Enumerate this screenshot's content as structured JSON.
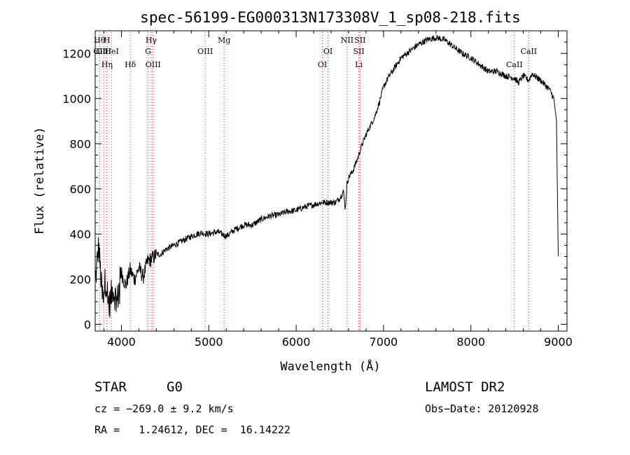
{
  "chart_data": {
    "type": "line",
    "title": "spec-56199-EG000313N173308V_1_sp08-218.fits",
    "xlabel": "Wavelength (Å)",
    "ylabel": "Flux (relative)",
    "xlim": [
      3700,
      9100
    ],
    "ylim": [
      -30,
      1300
    ],
    "x_ticks": [
      4000,
      5000,
      6000,
      7000,
      8000,
      9000
    ],
    "y_ticks": [
      0,
      200,
      400,
      600,
      800,
      1000,
      1200
    ],
    "grid": false,
    "series": [
      {
        "x": [
          3700,
          3740,
          3780,
          3820,
          3860,
          3900,
          3950,
          4000,
          4050,
          4100,
          4150,
          4200,
          4250,
          4300,
          4350,
          4400,
          4450,
          4500,
          4600,
          4700,
          4800,
          4900,
          5000,
          5100,
          5200,
          5300,
          5400,
          5500,
          5600,
          5700,
          5800,
          5900,
          6000,
          6100,
          6200,
          6300,
          6400,
          6450,
          6500,
          6540,
          6563,
          6580,
          6600,
          6650,
          6700,
          6750,
          6800,
          6850,
          6900,
          6950,
          7000,
          7050,
          7100,
          7150,
          7200,
          7300,
          7400,
          7500,
          7600,
          7700,
          7800,
          7900,
          8000,
          8100,
          8200,
          8300,
          8400,
          8500,
          8542,
          8600,
          8662,
          8700,
          8800,
          8850,
          8900,
          8950,
          8980,
          9000
        ],
        "y": [
          180,
          350,
          120,
          200,
          80,
          160,
          100,
          230,
          170,
          240,
          200,
          250,
          210,
          280,
          290,
          310,
          310,
          330,
          350,
          370,
          390,
          405,
          400,
          410,
          390,
          420,
          440,
          440,
          465,
          480,
          485,
          500,
          505,
          520,
          530,
          540,
          540,
          540,
          560,
          590,
          510,
          620,
          650,
          680,
          730,
          790,
          840,
          880,
          920,
          980,
          1050,
          1090,
          1120,
          1150,
          1180,
          1210,
          1240,
          1260,
          1270,
          1260,
          1230,
          1200,
          1180,
          1150,
          1120,
          1120,
          1100,
          1090,
          1070,
          1100,
          1080,
          1110,
          1080,
          1060,
          1040,
          1000,
          900,
          300
        ]
      }
    ],
    "lines": [
      {
        "x": 3750,
        "labels": [
          "Hθ",
          "OII"
        ]
      },
      {
        "x": 3798,
        "labels": [
          "OIII"
        ]
      },
      {
        "x": 3835,
        "labels": [
          "H",
          "Hη"
        ]
      },
      {
        "x": 3889,
        "labels": [
          "HeI"
        ]
      },
      {
        "x": 4102,
        "labels": [
          "Hδ"
        ]
      },
      {
        "x": 4341,
        "labels": [
          "Hγ"
        ]
      },
      {
        "x": 4305,
        "labels": [
          "G"
        ]
      },
      {
        "x": 4363,
        "labels": [
          "OIII"
        ]
      },
      {
        "x": 4959,
        "labels": [
          "OIII"
        ]
      },
      {
        "x": 5175,
        "labels": [
          "Mg"
        ]
      },
      {
        "x": 6300,
        "labels": [
          "OI"
        ]
      },
      {
        "x": 6364,
        "labels": [
          "OI"
        ]
      },
      {
        "x": 6584,
        "labels": [
          "NII"
        ]
      },
      {
        "x": 6717,
        "labels": [
          "SII",
          "Li"
        ]
      },
      {
        "x": 6731,
        "labels": [
          "SII"
        ]
      },
      {
        "x": 8498,
        "labels": [
          "CaII"
        ]
      },
      {
        "x": 8662,
        "labels": [
          "CaII"
        ]
      }
    ]
  },
  "info": {
    "class": "STAR",
    "subclass": "G0",
    "survey": "LAMOST DR2",
    "cz": "cz = −269.0 ± 9.2 km/s",
    "obsdate": "Obs−Date: 20120928",
    "radec": "RA =   1.24612, DEC =  16.14222"
  }
}
